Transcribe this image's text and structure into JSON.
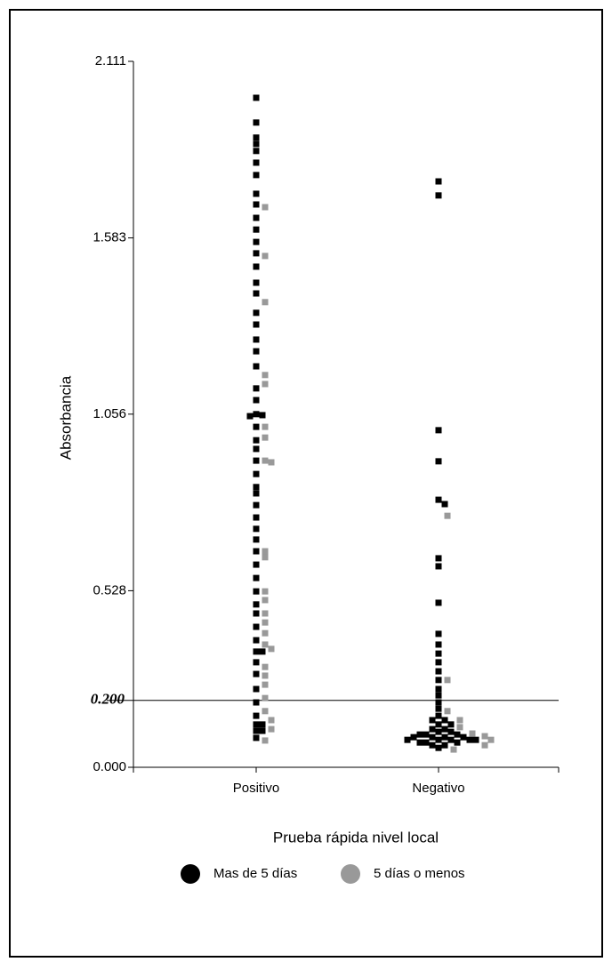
{
  "chart_data": {
    "type": "dotplot",
    "y_label": "Absorbancia",
    "x_label": "Prueba rápida nivel local",
    "categories": [
      "Positivo",
      "Negativo"
    ],
    "ylim": [
      0,
      2.111
    ],
    "yticks": [
      {
        "value": 0,
        "label": "0.000"
      },
      0.528,
      1.056,
      1.583,
      2.111
    ],
    "reference_line": {
      "value": 0.2,
      "label": "0.200"
    },
    "series": [
      {
        "name": "Mas de 5 días",
        "color": "#000000",
        "values": [
          [
            2.002,
            1.928,
            1.883,
            1.864,
            1.843,
            1.808,
            1.771,
            1.715,
            1.683,
            1.643,
            1.608,
            1.571,
            1.537,
            1.497,
            1.449,
            1.417,
            1.359,
            1.324,
            1.279,
            1.244,
            1.199,
            1.133,
            1.098,
            1.056,
            1.053,
            1.05,
            1.018,
            0.978,
            0.952,
            0.917,
            0.877,
            0.838,
            0.819,
            0.784,
            0.747,
            0.713,
            0.681,
            0.646,
            0.606,
            0.566,
            0.526,
            0.487,
            0.46,
            0.42,
            0.38,
            0.346,
            0.346,
            0.314,
            0.279,
            0.234,
            0.194,
            0.154,
            0.128,
            0.128,
            0.109,
            0.109,
            0.088
          ],
          [
            1.752,
            1.71,
            1.008,
            0.915,
            0.8,
            0.787,
            0.625,
            0.601,
            0.492,
            0.399,
            0.367,
            0.34,
            0.314,
            0.287,
            0.261,
            0.234,
            0.215,
            0.194,
            0.175,
            0.154,
            0.141,
            0.141,
            0.128,
            0.128,
            0.114,
            0.114,
            0.106,
            0.106,
            0.098,
            0.098,
            0.098,
            0.09,
            0.09,
            0.09,
            0.09,
            0.082,
            0.082,
            0.082,
            0.082,
            0.082,
            0.074,
            0.074,
            0.074,
            0.066,
            0.066,
            0.058
          ]
        ]
      },
      {
        "name": "5 días o menos",
        "color": "#999999",
        "values": [
          [
            1.675,
            1.529,
            1.391,
            1.173,
            1.146,
            1.018,
            0.986,
            0.917,
            0.912,
            0.646,
            0.628,
            0.526,
            0.5,
            0.46,
            0.433,
            0.401,
            0.367,
            0.354,
            0.3,
            0.274,
            0.247,
            0.207,
            0.168,
            0.141,
            0.114,
            0.08
          ],
          [
            0.752,
            0.261,
            0.168,
            0.141,
            0.12,
            0.101,
            0.093,
            0.082,
            0.066,
            0.053
          ]
        ]
      }
    ]
  }
}
